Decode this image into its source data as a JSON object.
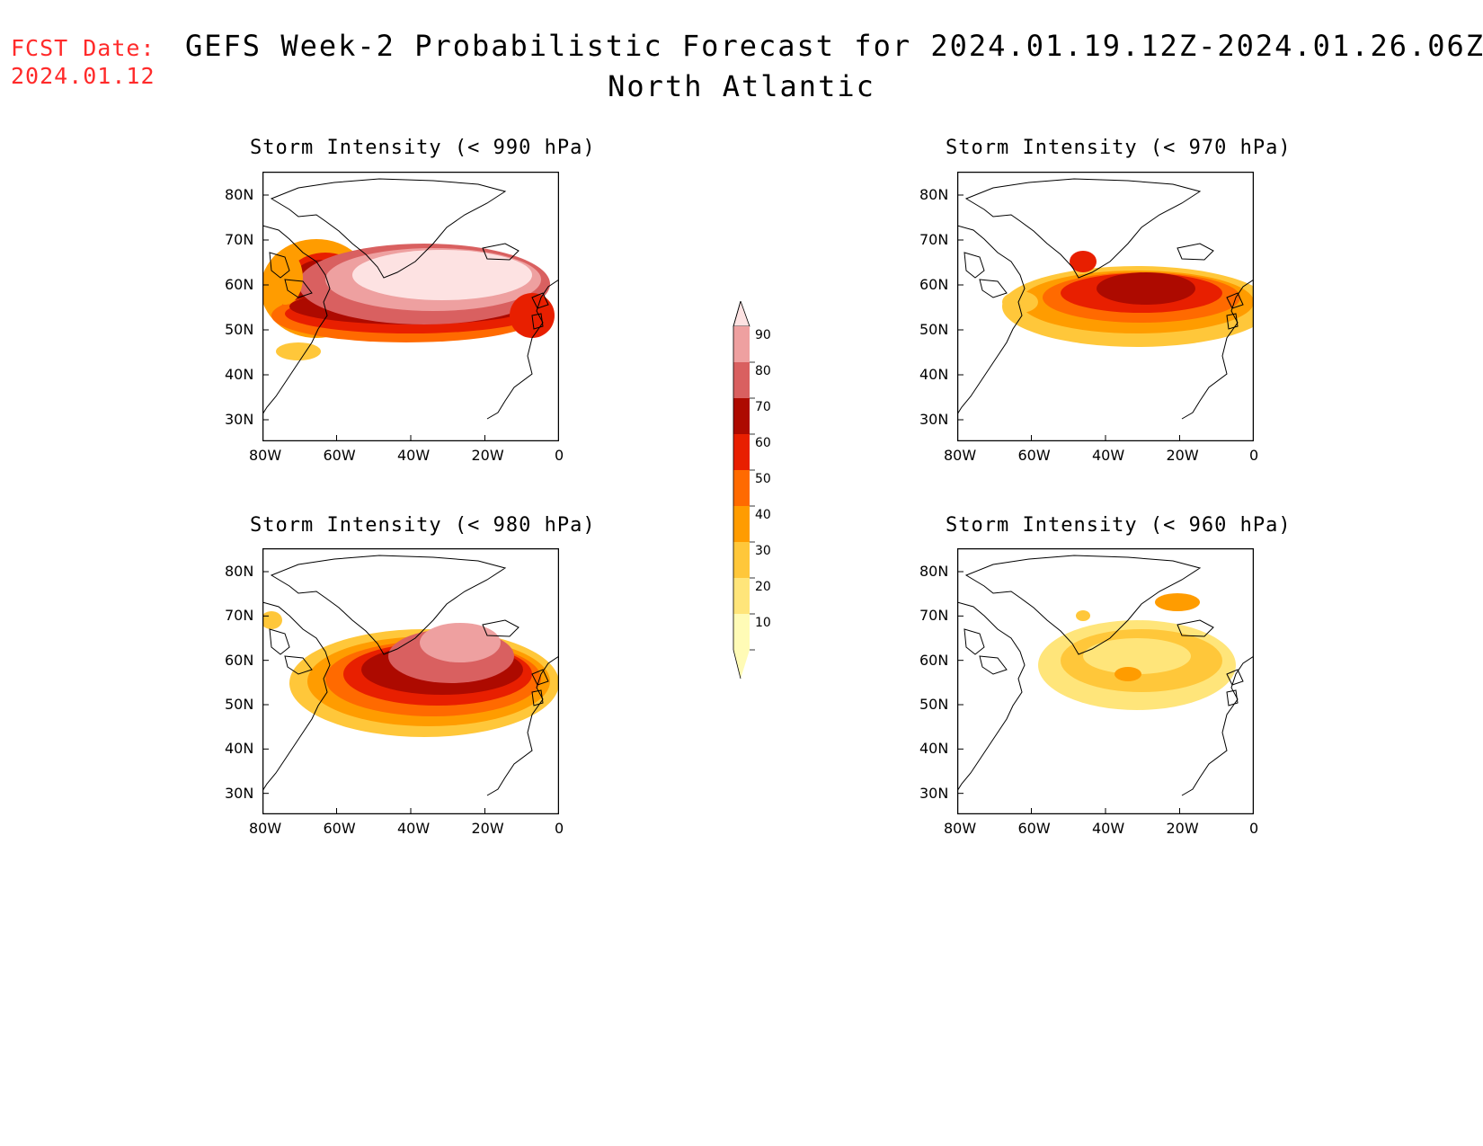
{
  "fcst": {
    "line1": "FCST Date:",
    "line2": "2024.01.12"
  },
  "title": {
    "line1": "GEFS Week-2 Probabilistic Forecast for 2024.01.19.12Z-2024.01.26.06Z",
    "line2": "North Atlantic"
  },
  "panels": [
    {
      "title": "Storm Intensity (< 990 hPa)"
    },
    {
      "title": "Storm Intensity (< 970 hPa)"
    },
    {
      "title": "Storm Intensity (< 980 hPa)"
    },
    {
      "title": "Storm Intensity (< 960 hPa)"
    }
  ],
  "axes": {
    "lat_labels": [
      "80N",
      "70N",
      "60N",
      "50N",
      "40N",
      "30N"
    ],
    "lon_labels": [
      "80W",
      "60W",
      "40W",
      "20W",
      "0"
    ]
  },
  "colorbar": {
    "levels": [
      "10",
      "20",
      "30",
      "40",
      "50",
      "60",
      "70",
      "80",
      "90"
    ],
    "colors": [
      "#fffbb6",
      "#ffe57a",
      "#ffc73a",
      "#ff9c00",
      "#ff6a00",
      "#e81f00",
      "#ad0a00",
      "#d96060",
      "#eea0a0",
      "#fde2e2"
    ]
  }
}
